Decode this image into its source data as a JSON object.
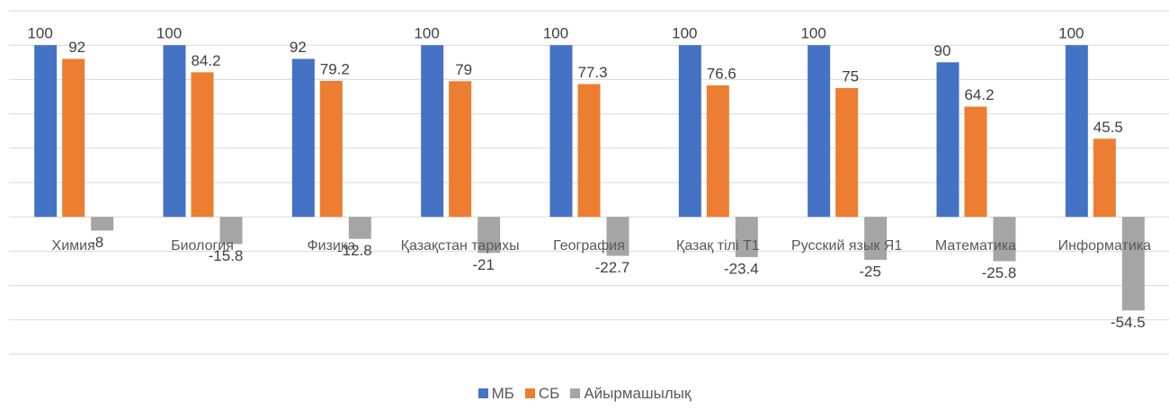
{
  "chart_data": {
    "type": "bar",
    "categories": [
      "Химия",
      "Биология",
      "Физика",
      "Қазақстан тарихы",
      "География",
      "Қазақ тілі Т1",
      "Русский язык Я1",
      "Математика",
      "Информатика"
    ],
    "series": [
      {
        "name": "МБ",
        "color": "#4472c4",
        "values": [
          100,
          100,
          92,
          100,
          100,
          100,
          100,
          90,
          100
        ]
      },
      {
        "name": "СБ",
        "color": "#ed7d31",
        "values": [
          92,
          84.2,
          79.2,
          79,
          77.3,
          76.6,
          75,
          64.2,
          45.5
        ]
      },
      {
        "name": "Айырмашылық",
        "color": "#a5a5a5",
        "values": [
          -8,
          -15.8,
          -12.8,
          -21,
          -22.7,
          -23.4,
          -25,
          -25.8,
          -54.5
        ]
      }
    ],
    "ylim": [
      -80,
      120
    ],
    "yticks": [
      -80,
      -60,
      -40,
      -20,
      0,
      20,
      40,
      60,
      80,
      100,
      120
    ],
    "grid": true
  }
}
